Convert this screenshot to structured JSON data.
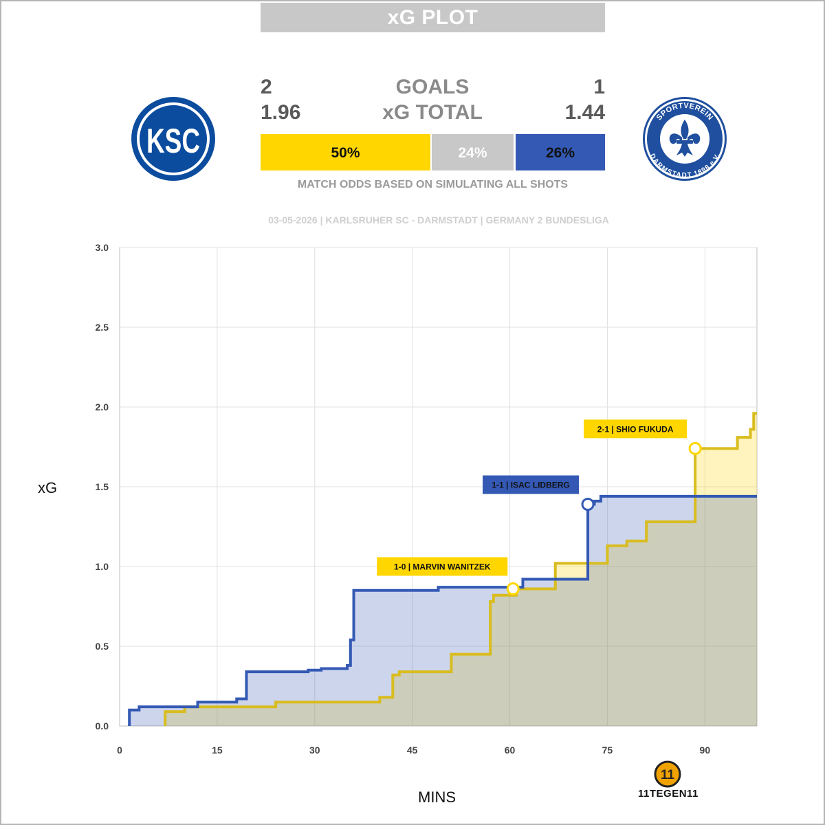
{
  "header": {
    "title": "xG PLOT"
  },
  "stats": {
    "goals_label": "GOALS",
    "xg_label": "xG TOTAL",
    "home_goals": "2",
    "away_goals": "1",
    "home_xg": "1.96",
    "away_xg": "1.44"
  },
  "odds": {
    "home_win": "50%",
    "draw": "24%",
    "away_win": "26%",
    "home_win_value": 50,
    "draw_value": 24,
    "away_win_value": 26,
    "caption": "MATCH ODDS BASED ON SIMULATING ALL SHOTS"
  },
  "match_info": "03-05-2026 | KARLSRUHER SC - DARMSTADT | GERMANY 2 BUNDESLIGA",
  "logos": {
    "home_text": "KSC",
    "away_ring_top": "SPORTVEREIN",
    "away_ring_bottom": "DARMSTADT 1898 e.V."
  },
  "brand": {
    "mark": "11",
    "text": "11TEGEN11"
  },
  "colors": {
    "home": "#ffd600",
    "away": "#3459b4",
    "draw": "#c8c8c8",
    "home_line": "#d9bc1f",
    "away_line": "#3459b4"
  },
  "chart_data": {
    "type": "line",
    "step": true,
    "xlabel": "MINS",
    "ylabel": "xG",
    "xlim": [
      0,
      98
    ],
    "ylim": [
      0,
      3.0
    ],
    "xticks": [
      0,
      15,
      30,
      45,
      60,
      75,
      90
    ],
    "yticks": [
      0.0,
      0.5,
      1.0,
      1.5,
      2.0,
      2.5,
      3.0
    ],
    "ytick_labels": [
      "0.0",
      "0.5",
      "1.0",
      "1.5",
      "2.0",
      "2.5",
      "3.0"
    ],
    "grid": true,
    "series": [
      {
        "team": "home",
        "points": [
          [
            7,
            0
          ],
          [
            7,
            0.09
          ],
          [
            10,
            0.09
          ],
          [
            10,
            0.12
          ],
          [
            24,
            0.12
          ],
          [
            24,
            0.15
          ],
          [
            40,
            0.15
          ],
          [
            40,
            0.18
          ],
          [
            42,
            0.18
          ],
          [
            42,
            0.32
          ],
          [
            43,
            0.32
          ],
          [
            43,
            0.34
          ],
          [
            51,
            0.34
          ],
          [
            51,
            0.45
          ],
          [
            57,
            0.45
          ],
          [
            57,
            0.78
          ],
          [
            57.5,
            0.78
          ],
          [
            57.5,
            0.82
          ],
          [
            61,
            0.82
          ],
          [
            61,
            0.86
          ],
          [
            67,
            0.86
          ],
          [
            67,
            1.02
          ],
          [
            75,
            1.02
          ],
          [
            75,
            1.13
          ],
          [
            78,
            1.13
          ],
          [
            78,
            1.16
          ],
          [
            81,
            1.16
          ],
          [
            81,
            1.28
          ],
          [
            88.5,
            1.28
          ],
          [
            88.5,
            1.74
          ],
          [
            95,
            1.74
          ],
          [
            95,
            1.81
          ],
          [
            97,
            1.81
          ],
          [
            97,
            1.86
          ],
          [
            97.5,
            1.86
          ],
          [
            97.5,
            1.96
          ],
          [
            98,
            1.96
          ]
        ]
      },
      {
        "team": "away",
        "points": [
          [
            1.5,
            0
          ],
          [
            1.5,
            0.1
          ],
          [
            3,
            0.1
          ],
          [
            3,
            0.12
          ],
          [
            12,
            0.12
          ],
          [
            12,
            0.15
          ],
          [
            18,
            0.15
          ],
          [
            18,
            0.17
          ],
          [
            19.5,
            0.17
          ],
          [
            19.5,
            0.34
          ],
          [
            29,
            0.34
          ],
          [
            29,
            0.35
          ],
          [
            31,
            0.35
          ],
          [
            31,
            0.36
          ],
          [
            35,
            0.36
          ],
          [
            35,
            0.38
          ],
          [
            35.5,
            0.38
          ],
          [
            35.5,
            0.54
          ],
          [
            36,
            0.54
          ],
          [
            36,
            0.85
          ],
          [
            49,
            0.85
          ],
          [
            49,
            0.87
          ],
          [
            62,
            0.87
          ],
          [
            62,
            0.92
          ],
          [
            72,
            0.92
          ],
          [
            72,
            1.39
          ],
          [
            73,
            1.39
          ],
          [
            73,
            1.41
          ],
          [
            74,
            1.41
          ],
          [
            74,
            1.44
          ],
          [
            98,
            1.44
          ]
        ]
      }
    ],
    "annotations": [
      {
        "label": "1-0 | MARVIN WANITZEK",
        "team": "home",
        "x": 60.5,
        "y": 0.86
      },
      {
        "label": "1-1 | ISAC LIDBERG",
        "team": "away",
        "x": 72,
        "y": 1.39
      },
      {
        "label": "2-1 | SHIO FUKUDA",
        "team": "home",
        "x": 88.5,
        "y": 1.74
      }
    ]
  }
}
